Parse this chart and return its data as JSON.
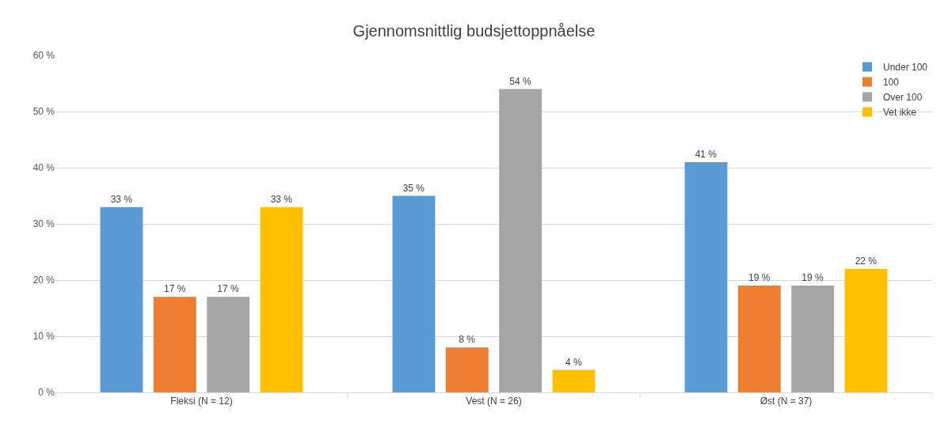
{
  "chart_data": {
    "type": "bar",
    "title": "Gjennomsnittlig budsjettoppnåelse",
    "categories": [
      "Fleksi (N = 12)",
      "Vest (N = 26)",
      "Øst (N = 37)"
    ],
    "series": [
      {
        "name": "Under 100",
        "color": "#5b9bd5",
        "values": [
          33,
          35,
          41
        ],
        "value_labels": [
          "33 %",
          "35 %",
          "41 %"
        ]
      },
      {
        "name": "100",
        "color": "#ed7d31",
        "values": [
          17,
          8,
          19
        ],
        "value_labels": [
          "17 %",
          "8 %",
          "19 %"
        ]
      },
      {
        "name": "Over 100",
        "color": "#a5a5a5",
        "values": [
          17,
          54,
          19
        ],
        "value_labels": [
          "17 %",
          "54 %",
          "19 %"
        ]
      },
      {
        "name": "Vet ikke",
        "color": "#ffc000",
        "values": [
          33,
          4,
          22
        ],
        "value_labels": [
          "33 %",
          "4 %",
          "22 %"
        ]
      }
    ],
    "ylim": [
      0,
      60
    ],
    "yticks": [
      {
        "value": 0,
        "label": "0 %"
      },
      {
        "value": 10,
        "label": "10 %"
      },
      {
        "value": 20,
        "label": "20 %"
      },
      {
        "value": 30,
        "label": "30 %"
      },
      {
        "value": 40,
        "label": "40 %"
      },
      {
        "value": 50,
        "label": "50 %"
      },
      {
        "value": 60,
        "label": "60 %"
      }
    ],
    "grid": "y",
    "legend": "top right"
  }
}
